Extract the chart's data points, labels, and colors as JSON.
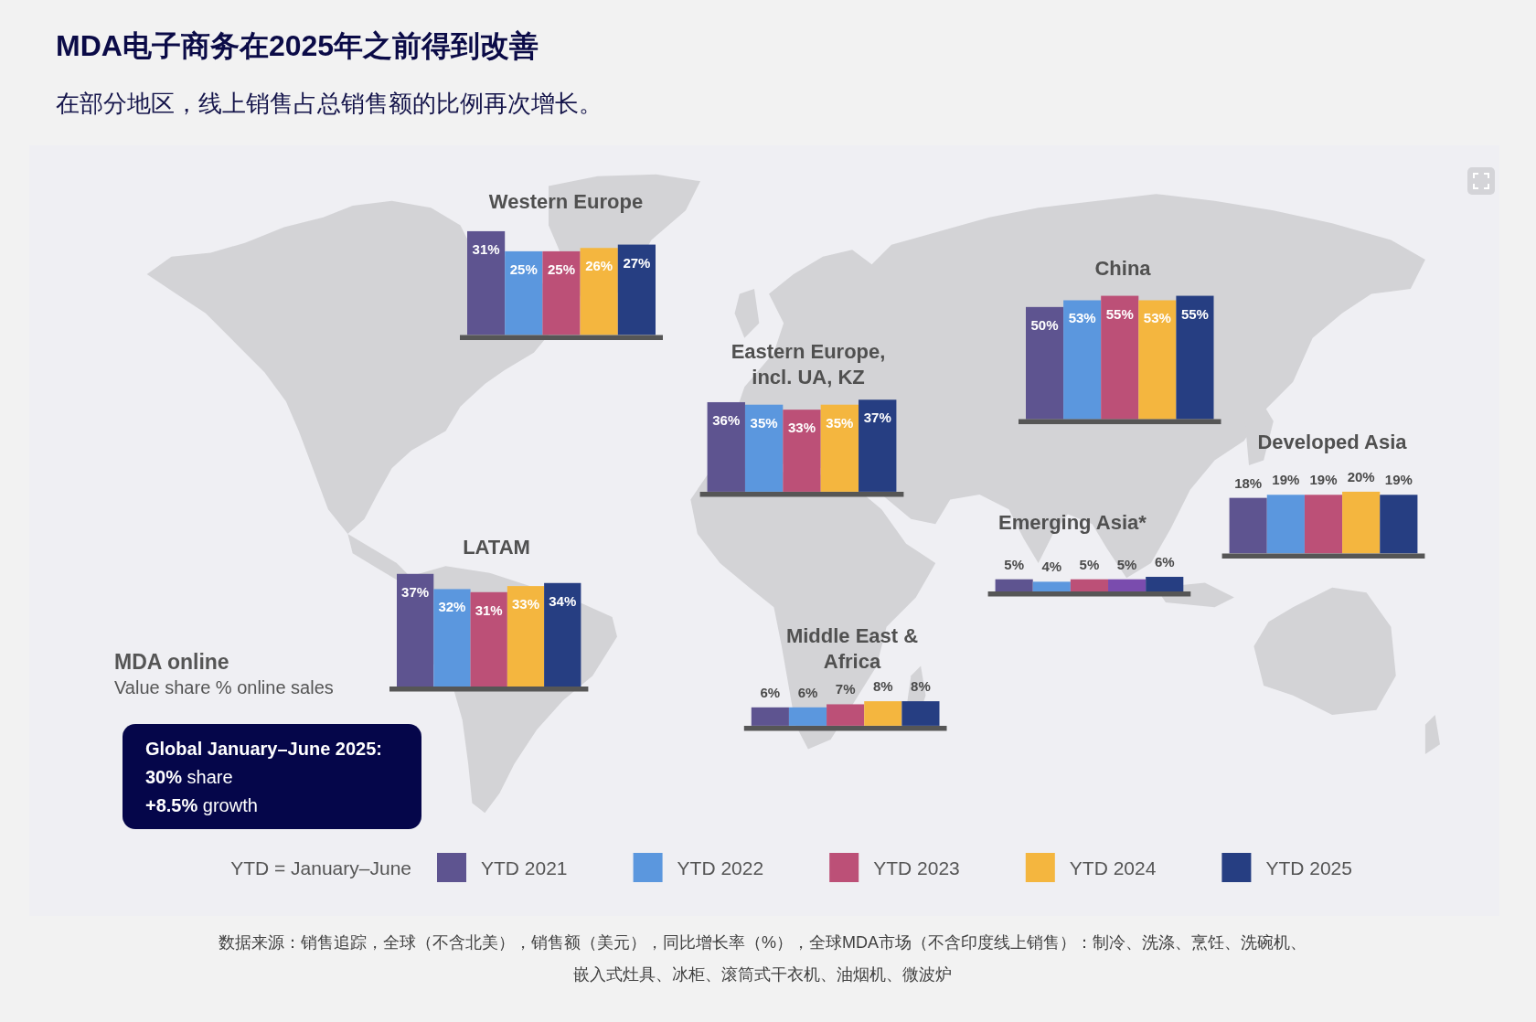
{
  "chart_data": [
    {
      "type": "other",
      "title": "MDA电子商务在2025年之前得到改善",
      "subtitle": "在部分地区，线上销售占总销售额的比例再次增长。",
      "annotations": [
        "MDA online",
        "Value share % online sales",
        "Global January–June 2025:",
        "**30%** share",
        "**+8.5%** growth",
        "数据来源：销售追踪，全球（不含北美），销售额（美元），同比增长率（%），全球MDA市场（不含印度线上销售）：制冷、洗涤、烹饪、洗碗机、嵌入式灶具、冰柜、滚筒式干衣机、油烟机、微波炉"
      ]
    },
    {
      "type": "bar",
      "title": "Western Europe",
      "categories": [
        null
      ],
      "legend": "bottom",
      "legend_title": "YTD = January–June",
      "series": [
        {
          "name": "YTD 2021",
          "color": "#5e5490",
          "values": [
            31
          ],
          "value_labels": [
            "31%"
          ]
        },
        {
          "name": "YTD 2022",
          "color": "#5b97de",
          "values": [
            25
          ],
          "value_labels": [
            "25%"
          ]
        },
        {
          "name": "YTD 2023",
          "color": "#bc5077",
          "values": [
            25
          ],
          "value_labels": [
            "25%"
          ]
        },
        {
          "name": "YTD 2024",
          "color": "#f4b63f",
          "values": [
            26
          ],
          "value_labels": [
            "26%"
          ]
        },
        {
          "name": "YTD 2025",
          "color": "#263e82",
          "values": [
            27
          ],
          "value_labels": [
            "27%"
          ]
        }
      ]
    },
    {
      "type": "bar",
      "title": "China",
      "categories": [
        null
      ],
      "series": [
        {
          "color": "#5e5490",
          "values": [
            50
          ],
          "value_labels": [
            "50%"
          ]
        },
        {
          "color": "#5b97de",
          "values": [
            53
          ],
          "value_labels": [
            "53%"
          ]
        },
        {
          "color": "#bc5077",
          "values": [
            55
          ],
          "value_labels": [
            "55%"
          ]
        },
        {
          "color": "#f4b63f",
          "values": [
            53
          ],
          "value_labels": [
            "53%"
          ]
        },
        {
          "color": "#263e82",
          "values": [
            55
          ],
          "value_labels": [
            "55%"
          ]
        }
      ]
    },
    {
      "type": "bar",
      "title": "Eastern Europe, incl. UA, KZ",
      "categories": [
        null
      ],
      "series": [
        {
          "color": "#5e5490",
          "values": [
            36
          ],
          "value_labels": [
            "36%"
          ]
        },
        {
          "color": "#5b97de",
          "values": [
            35
          ],
          "value_labels": [
            "35%"
          ]
        },
        {
          "color": "#bc5077",
          "values": [
            33
          ],
          "value_labels": [
            "33%"
          ]
        },
        {
          "color": "#f4b63f",
          "values": [
            35
          ],
          "value_labels": [
            "35%"
          ]
        },
        {
          "color": "#263e82",
          "values": [
            37
          ],
          "value_labels": [
            "37%"
          ]
        }
      ]
    },
    {
      "type": "bar",
      "title": "Developed Asia",
      "categories": [
        null
      ],
      "series": [
        {
          "color": "#5e5490",
          "values": [
            18
          ],
          "value_labels": [
            "18%"
          ]
        },
        {
          "color": "#5b97de",
          "values": [
            19
          ],
          "value_labels": [
            "19%"
          ]
        },
        {
          "color": "#bc5077",
          "values": [
            19
          ],
          "value_labels": [
            "19%"
          ]
        },
        {
          "color": "#f4b63f",
          "values": [
            20
          ],
          "value_labels": [
            "20%"
          ]
        },
        {
          "color": "#263e82",
          "values": [
            19
          ],
          "value_labels": [
            "19%"
          ]
        }
      ]
    },
    {
      "type": "bar",
      "title": "Emerging Asia*",
      "categories": [
        null
      ],
      "series": [
        {
          "color": "#5e5490",
          "values": [
            5
          ],
          "value_labels": [
            "5%"
          ]
        },
        {
          "color": "#5b97de",
          "values": [
            4
          ],
          "value_labels": [
            "4%"
          ]
        },
        {
          "color": "#bc5077",
          "values": [
            5
          ],
          "value_labels": [
            "5%"
          ]
        },
        {
          "color": "#7a4cae",
          "values": [
            5
          ],
          "value_labels": [
            "5%"
          ]
        },
        {
          "color": "#263e82",
          "values": [
            6
          ],
          "value_labels": [
            "6%"
          ]
        }
      ]
    },
    {
      "type": "bar",
      "title": "LATAM",
      "categories": [
        null
      ],
      "series": [
        {
          "color": "#5e5490",
          "values": [
            37
          ],
          "value_labels": [
            "37%"
          ]
        },
        {
          "color": "#5b97de",
          "values": [
            32
          ],
          "value_labels": [
            "32%"
          ]
        },
        {
          "color": "#bc5077",
          "values": [
            31
          ],
          "value_labels": [
            "31%"
          ]
        },
        {
          "color": "#f4b63f",
          "values": [
            33
          ],
          "value_labels": [
            "33%"
          ]
        },
        {
          "color": "#263e82",
          "values": [
            34
          ],
          "value_labels": [
            "34%"
          ]
        }
      ]
    },
    {
      "type": "bar",
      "title": "Middle East & Africa",
      "categories": [
        null
      ],
      "series": [
        {
          "color": "#5e5490",
          "values": [
            6
          ],
          "value_labels": [
            "6%"
          ]
        },
        {
          "color": "#5b97de",
          "values": [
            6
          ],
          "value_labels": [
            "6%"
          ]
        },
        {
          "color": "#bc5077",
          "values": [
            7
          ],
          "value_labels": [
            "7%"
          ]
        },
        {
          "color": "#f4b63f",
          "values": [
            8
          ],
          "value_labels": [
            "8%"
          ]
        },
        {
          "color": "#263e82",
          "values": [
            8
          ],
          "value_labels": [
            "8%"
          ]
        }
      ]
    }
  ]
}
